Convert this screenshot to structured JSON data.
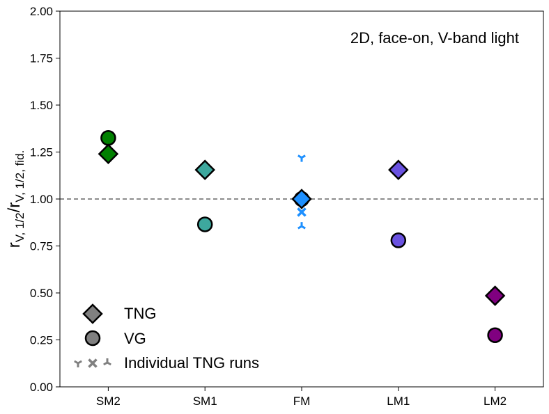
{
  "chart_data": {
    "type": "scatter",
    "title": "",
    "annotation": "2D, face-on, V-band light",
    "xlabel": "",
    "ylabel": {
      "main_r1": "r",
      "sub1": "V, 1/2",
      "slash": "/",
      "main_r2": "r",
      "sub2": "V, 1/2, fid."
    },
    "categories": [
      "SM2",
      "SM1",
      "FM",
      "LM1",
      "LM2"
    ],
    "ylim": [
      0.0,
      2.0
    ],
    "yticks": [
      0.0,
      0.25,
      0.5,
      0.75,
      1.0,
      1.25,
      1.5,
      1.75,
      2.0
    ],
    "ytick_labels": [
      "0.00",
      "0.25",
      "0.50",
      "0.75",
      "1.00",
      "1.25",
      "1.50",
      "1.75",
      "2.00"
    ],
    "reference_line": 1.0,
    "series": [
      {
        "name": "TNG",
        "marker": "diamond",
        "values": [
          1.24,
          1.155,
          1.0,
          1.155,
          0.485
        ],
        "colors": [
          "#008000",
          "#3da89e",
          "#1e90ff",
          "#6a52e0",
          "#800080"
        ]
      },
      {
        "name": "VG",
        "marker": "circle",
        "values": [
          1.325,
          0.865,
          1.0,
          0.78,
          0.275
        ],
        "colors": [
          "#008000",
          "#3da89e",
          "#1e90ff",
          "#6a52e0",
          "#800080"
        ]
      },
      {
        "name": "Individual TNG runs",
        "category": "FM",
        "color": "#1e90ff",
        "points": [
          {
            "marker": "tri_down",
            "value": 1.22
          },
          {
            "marker": "x",
            "value": 0.93
          },
          {
            "marker": "tri_up",
            "value": 0.855
          }
        ]
      }
    ],
    "legend": {
      "position": "lower-left",
      "entries": [
        "TNG",
        "VG",
        "Individual TNG runs"
      ],
      "color": "#808080"
    }
  }
}
